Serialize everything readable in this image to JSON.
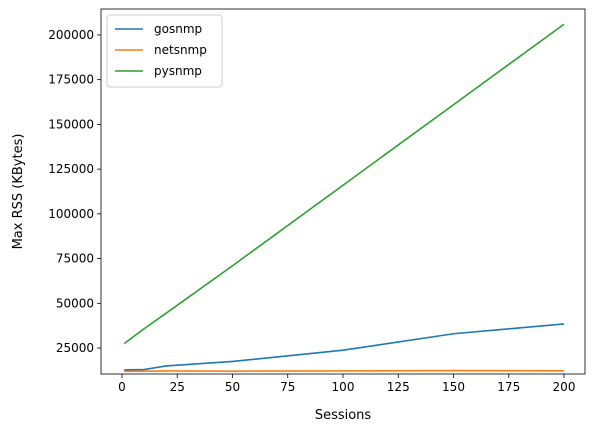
{
  "chart_data": {
    "type": "line",
    "xlabel": "Sessions",
    "ylabel": "Max RSS (KBytes)",
    "xlim": [
      -9.5,
      209.5
    ],
    "ylim": [
      10500,
      214500
    ],
    "xticks": [
      0,
      25,
      50,
      75,
      100,
      125,
      150,
      175,
      200
    ],
    "yticks": [
      25000,
      50000,
      75000,
      100000,
      125000,
      150000,
      175000,
      200000
    ],
    "legend_position": "top-left",
    "grid": false,
    "series": [
      {
        "name": "gosnmp",
        "color": "#1f77b4",
        "x": [
          1,
          10,
          20,
          50,
          100,
          150,
          200
        ],
        "y": [
          12800,
          13000,
          15000,
          17500,
          23800,
          33000,
          38500
        ]
      },
      {
        "name": "netsnmp",
        "color": "#ff7f0e",
        "x": [
          1,
          10,
          20,
          50,
          100,
          150,
          200
        ],
        "y": [
          12000,
          12100,
          12200,
          12100,
          12200,
          12400,
          12300
        ]
      },
      {
        "name": "pysnmp",
        "color": "#2ca02c",
        "x": [
          1,
          10,
          20,
          50,
          100,
          150,
          200
        ],
        "y": [
          27500,
          35800,
          44500,
          71000,
          116000,
          161000,
          206000
        ]
      }
    ]
  }
}
